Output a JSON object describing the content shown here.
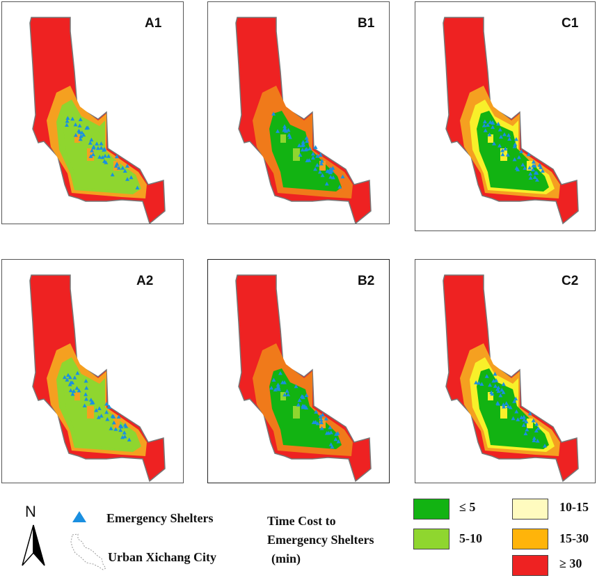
{
  "colors": {
    "le5": "#12b312",
    "5to10": "#8fd62f",
    "10to15": "#fffbbf",
    "15to30": "#ffb40a",
    "ge30": "#ee2222",
    "yellow_band": "#f8f02a",
    "orange_band": "#f5a020",
    "dark_orange_band": "#f07a1a",
    "shelter": "#1a8fe0",
    "boundary": "#777777"
  },
  "panels": [
    {
      "id": "A1",
      "label": "A1",
      "scheme": "A"
    },
    {
      "id": "B1",
      "label": "B1",
      "scheme": "B"
    },
    {
      "id": "C1",
      "label": "C1",
      "scheme": "C"
    },
    {
      "id": "A2",
      "label": "A2",
      "scheme": "A"
    },
    {
      "id": "B2",
      "label": "B2",
      "scheme": "B"
    },
    {
      "id": "C2",
      "label": "C2",
      "scheme": "C"
    }
  ],
  "legend": {
    "north_label": "N",
    "shelters_label": "Emergency Shelters",
    "city_label": "Urban Xichang City",
    "title_line1": "Time Cost to",
    "title_line2": "Emergency Shelters",
    "title_line3": "(min)",
    "classes": [
      {
        "label": "≤ 5",
        "color": "#12b312"
      },
      {
        "label": "5-10",
        "color": "#8fd62f"
      },
      {
        "label": "10-15",
        "color": "#fffbbf"
      },
      {
        "label": "15-30",
        "color": "#ffb40a"
      },
      {
        "label": "≥ 30",
        "color": "#ee2222"
      }
    ]
  }
}
